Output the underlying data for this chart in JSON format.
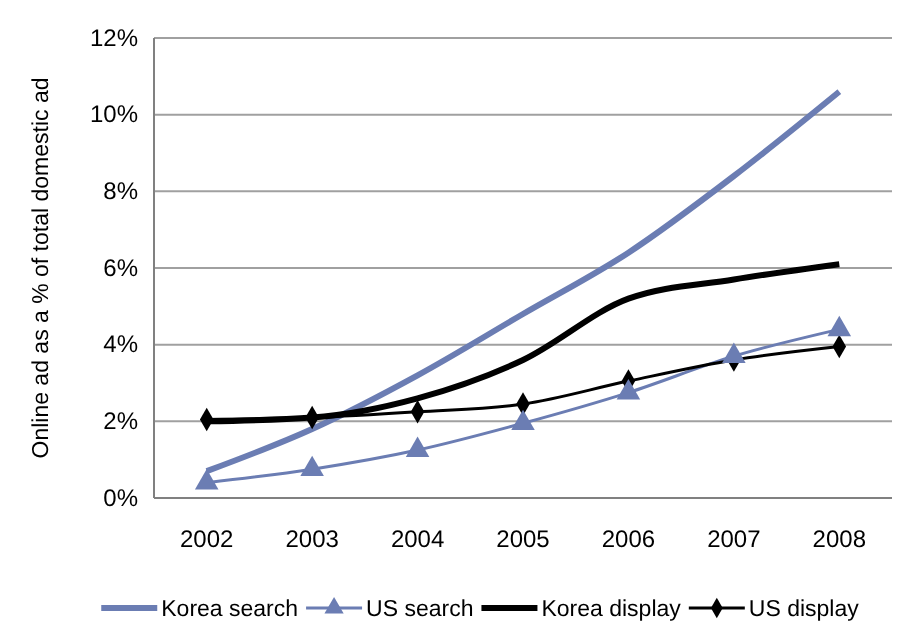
{
  "chart_data": {
    "type": "line",
    "ylabel": "Online ad as a % of total domestic ad",
    "categories": [
      "2002",
      "2003",
      "2004",
      "2005",
      "2006",
      "2007",
      "2008"
    ],
    "series": [
      {
        "name": "Korea search",
        "color": "#6b7db3",
        "marker": "none",
        "values": [
          0.7,
          1.8,
          3.2,
          4.8,
          6.4,
          8.4,
          10.6
        ]
      },
      {
        "name": "US search",
        "color": "#6b7db3",
        "marker": "triangle",
        "values": [
          0.4,
          0.75,
          1.25,
          1.95,
          2.75,
          3.7,
          4.4
        ]
      },
      {
        "name": "Korea display",
        "color": "#000000",
        "marker": "none",
        "values": [
          2.0,
          2.1,
          2.6,
          3.6,
          5.2,
          5.7,
          6.1
        ]
      },
      {
        "name": "US display",
        "color": "#000000",
        "marker": "diamond",
        "values": [
          2.05,
          2.1,
          2.25,
          2.45,
          3.05,
          3.6,
          3.95
        ]
      }
    ],
    "ylim": [
      0,
      12
    ],
    "yticks": [
      {
        "value": 0,
        "label": "0%"
      },
      {
        "value": 2,
        "label": "2%"
      },
      {
        "value": 4,
        "label": "4%"
      },
      {
        "value": 6,
        "label": "6%"
      },
      {
        "value": 8,
        "label": "8%"
      },
      {
        "value": 10,
        "label": "10%"
      },
      {
        "value": 12,
        "label": "12%"
      }
    ],
    "grid": "y",
    "legend": "bottom",
    "line_style": "solid"
  }
}
